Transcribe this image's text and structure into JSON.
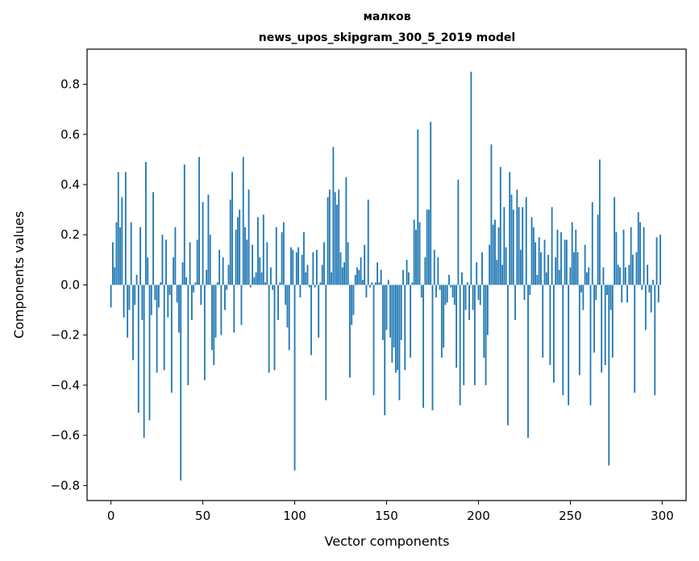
{
  "chart_data": {
    "type": "bar",
    "title_line1": "малков",
    "title_line2": "news_upos_skipgram_300_5_2019 model",
    "xlabel": "Vector components",
    "ylabel": "Components values",
    "xlim": [
      -13,
      313
    ],
    "ylim": [
      -0.86,
      0.94
    ],
    "x_ticks": [
      0,
      50,
      100,
      150,
      200,
      250,
      300
    ],
    "x_tick_labels": [
      "0",
      "50",
      "100",
      "150",
      "200",
      "250",
      "300"
    ],
    "y_ticks": [
      0.8,
      0.6,
      0.4,
      0.2,
      0.0,
      -0.2,
      -0.4,
      -0.6,
      -0.8
    ],
    "y_tick_labels": [
      "0.8",
      "0.6",
      "0.4",
      "0.2",
      "0.0",
      "−0.2",
      "−0.4",
      "−0.6",
      "−0.8"
    ],
    "bar_color": "#1f77b4",
    "grid": false,
    "values": [
      -0.09,
      0.17,
      0.07,
      0.25,
      0.45,
      0.23,
      0.35,
      -0.13,
      0.45,
      -0.21,
      -0.1,
      0.25,
      -0.3,
      -0.08,
      0.04,
      -0.51,
      0.23,
      -0.14,
      -0.61,
      0.49,
      0.11,
      -0.54,
      -0.12,
      0.37,
      -0.06,
      -0.35,
      -0.09,
      0.01,
      0.2,
      -0.34,
      0.18,
      -0.13,
      -0.04,
      -0.43,
      0.11,
      0.23,
      -0.07,
      -0.19,
      -0.78,
      0.09,
      0.48,
      0.03,
      -0.4,
      0.17,
      -0.14,
      -0.03,
      0.01,
      0.18,
      0.51,
      -0.08,
      0.33,
      -0.38,
      0.06,
      0.36,
      0.2,
      -0.26,
      -0.32,
      -0.21,
      0.01,
      0.14,
      -0.2,
      0.11,
      -0.1,
      -0.02,
      0.08,
      0.34,
      0.45,
      -0.19,
      0.22,
      0.27,
      0.3,
      -0.16,
      0.51,
      0.23,
      0.18,
      0.38,
      -0.01,
      0.16,
      0.03,
      0.05,
      0.27,
      0.11,
      0.05,
      0.28,
      0.01,
      0.17,
      -0.35,
      0.07,
      -0.02,
      -0.34,
      0.23,
      -0.14,
      0.01,
      0.21,
      0.25,
      -0.08,
      -0.17,
      -0.26,
      0.15,
      0.14,
      -0.74,
      0.13,
      0.15,
      -0.05,
      0.12,
      0.21,
      0.05,
      0.08,
      -0.01,
      -0.28,
      0.13,
      -0.01,
      0.14,
      -0.21,
      0.01,
      0.08,
      0.17,
      -0.46,
      0.35,
      0.38,
      0.05,
      0.55,
      0.37,
      0.32,
      0.38,
      0.13,
      0.07,
      0.09,
      0.43,
      0.17,
      -0.37,
      -0.16,
      -0.12,
      0.04,
      0.07,
      0.06,
      0.11,
      0.02,
      0.16,
      -0.05,
      0.34,
      -0.01,
      0.01,
      -0.44,
      0.01,
      0.09,
      0.01,
      0.06,
      -0.22,
      -0.52,
      -0.18,
      0.02,
      -0.21,
      -0.31,
      -0.25,
      -0.35,
      -0.34,
      -0.46,
      -0.22,
      0.06,
      -0.34,
      0.1,
      0.05,
      -0.29,
      0.01,
      0.26,
      0.22,
      0.62,
      0.25,
      -0.05,
      -0.49,
      0.11,
      0.3,
      0.3,
      0.65,
      -0.5,
      0.14,
      -0.05,
      0.11,
      -0.02,
      -0.29,
      -0.25,
      -0.08,
      -0.07,
      0.04,
      -0.01,
      -0.05,
      -0.08,
      -0.33,
      0.42,
      -0.48,
      0.05,
      -0.4,
      -0.1,
      0.01,
      -0.14,
      0.85,
      -0.1,
      -0.4,
      0.09,
      -0.06,
      -0.08,
      0.13,
      -0.29,
      -0.4,
      -0.2,
      0.16,
      0.56,
      0.24,
      0.26,
      0.1,
      0.23,
      0.47,
      0.08,
      0.31,
      0.15,
      -0.56,
      0.45,
      0.36,
      0.3,
      -0.14,
      0.38,
      0.31,
      0.14,
      0.31,
      -0.06,
      0.35,
      -0.61,
      -0.04,
      0.27,
      0.23,
      0.17,
      0.04,
      0.19,
      0.13,
      -0.29,
      0.18,
      0.05,
      0.12,
      -0.32,
      0.31,
      -0.39,
      0.11,
      0.22,
      0.06,
      0.21,
      -0.44,
      0.18,
      0.18,
      -0.48,
      0.07,
      0.25,
      0.13,
      0.22,
      0.13,
      -0.36,
      -0.03,
      -0.1,
      0.16,
      0.05,
      0.07,
      -0.48,
      0.33,
      -0.27,
      -0.06,
      0.28,
      0.5,
      -0.35,
      0.07,
      -0.32,
      -0.04,
      -0.72,
      -0.1,
      -0.29,
      0.35,
      0.21,
      0.08,
      0.07,
      -0.07,
      0.22,
      0.07,
      -0.07,
      0.08,
      0.23,
      0.12,
      -0.43,
      0.13,
      0.29,
      0.25,
      -0.02,
      0.23,
      -0.18,
      0.08,
      -0.03,
      -0.11,
      0.02,
      -0.44,
      0.19,
      -0.07,
      0.2
    ]
  }
}
